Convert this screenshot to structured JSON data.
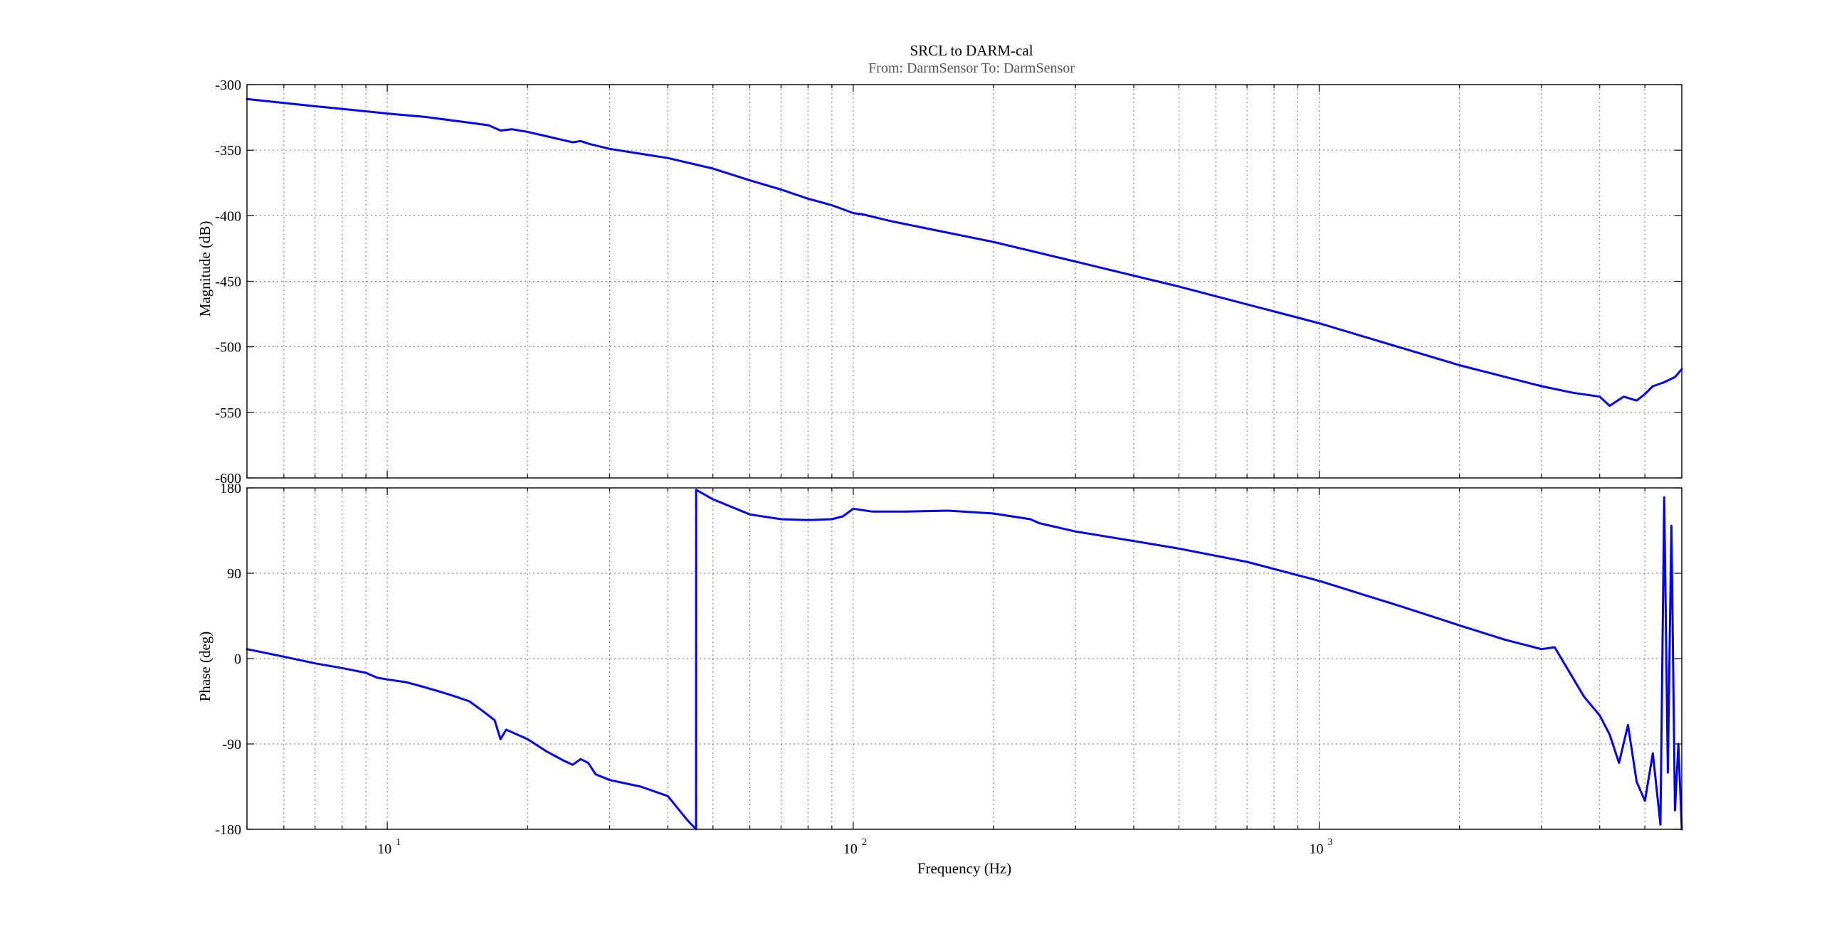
{
  "figure": {
    "title": "SRCL to DARM-cal",
    "subtitle": "From: DarmSensor  To: DarmSensor",
    "xlabel": "Frequency  (Hz)",
    "line_color": "#0000ff",
    "background": "#ffffff"
  },
  "chart_data": [
    {
      "type": "line",
      "panel": "magnitude",
      "ylabel": "Magnitude (dB)",
      "xscale": "log",
      "xlim": [
        5,
        6000
      ],
      "ylim": [
        -600,
        -300
      ],
      "yticks": [
        -300,
        -350,
        -400,
        -450,
        -500,
        -550,
        -600
      ],
      "ytick_labels": [
        "-300",
        "-350",
        "-400",
        "-450",
        "-500",
        "-550",
        "-600"
      ],
      "grid": true,
      "series": [
        {
          "color": "#0000ff",
          "x": [
            5,
            6,
            7,
            8,
            10,
            12,
            15,
            16.5,
            17.5,
            18.5,
            20,
            25,
            26,
            27,
            30,
            40,
            50,
            60,
            70,
            80,
            90,
            95,
            100,
            105,
            120,
            150,
            200,
            300,
            500,
            1000,
            2000,
            3000,
            3500,
            4000,
            4200,
            4500,
            4800,
            5000,
            5200,
            5500,
            5800,
            6000
          ],
          "y": [
            -311,
            -314,
            -316.5,
            -318.5,
            -322,
            -324.5,
            -329,
            -331,
            -335,
            -334,
            -336,
            -344,
            -343,
            -345,
            -349,
            -356,
            -364,
            -373,
            -380,
            -387,
            -392,
            -395,
            -398,
            -399,
            -404,
            -411,
            -420,
            -435,
            -454,
            -482,
            -514,
            -530,
            -535,
            -538,
            -545,
            -538,
            -541,
            -536,
            -530,
            -527,
            -523,
            -517
          ]
        }
      ]
    },
    {
      "type": "line",
      "panel": "phase",
      "ylabel": "Phase (deg)",
      "xscale": "log",
      "xlim": [
        5,
        6000
      ],
      "ylim": [
        -180,
        180
      ],
      "yticks": [
        180,
        90,
        0,
        -90,
        -180
      ],
      "ytick_labels": [
        "180",
        "90",
        "0",
        "-90",
        "-180"
      ],
      "xticks": [
        10,
        100,
        1000
      ],
      "xtick_labels": [
        "10",
        "10",
        "10"
      ],
      "xtick_exponents": [
        "1",
        "2",
        "3"
      ],
      "grid": true,
      "series": [
        {
          "color": "#0000ff",
          "x": [
            5,
            6,
            7,
            8,
            9,
            9.5,
            10,
            11,
            12,
            13,
            14,
            15,
            16,
            17,
            17.5,
            18,
            19,
            20,
            22,
            24,
            25,
            26,
            27,
            28,
            30,
            35,
            40,
            44,
            46,
            46.01,
            50,
            60,
            70,
            80,
            90,
            95,
            100,
            110,
            130,
            160,
            200,
            240,
            250,
            260,
            300,
            400,
            500,
            700,
            1000,
            1500,
            2000,
            2500,
            3000,
            3200,
            3500,
            3700,
            4000,
            4200,
            4400,
            4600,
            4800,
            5000,
            5200,
            5400,
            5500,
            5600,
            5700,
            5800,
            5900,
            6000
          ],
          "y": [
            10,
            2,
            -5,
            -10,
            -15,
            -20,
            -22,
            -25,
            -30,
            -35,
            -40,
            -45,
            -55,
            -65,
            -85,
            -75,
            -80,
            -85,
            -98,
            -108,
            -112,
            -106,
            -110,
            -122,
            -128,
            -135,
            -145,
            -170,
            -180,
            178,
            168,
            152,
            147,
            146,
            147,
            150,
            158,
            155,
            155,
            156,
            153,
            147,
            143,
            141,
            134,
            124,
            116,
            102,
            82,
            55,
            35,
            20,
            10,
            12,
            -20,
            -40,
            -60,
            -80,
            -110,
            -70,
            -130,
            -150,
            -100,
            -175,
            170,
            -120,
            140,
            -160,
            -90,
            -180
          ]
        }
      ]
    }
  ]
}
